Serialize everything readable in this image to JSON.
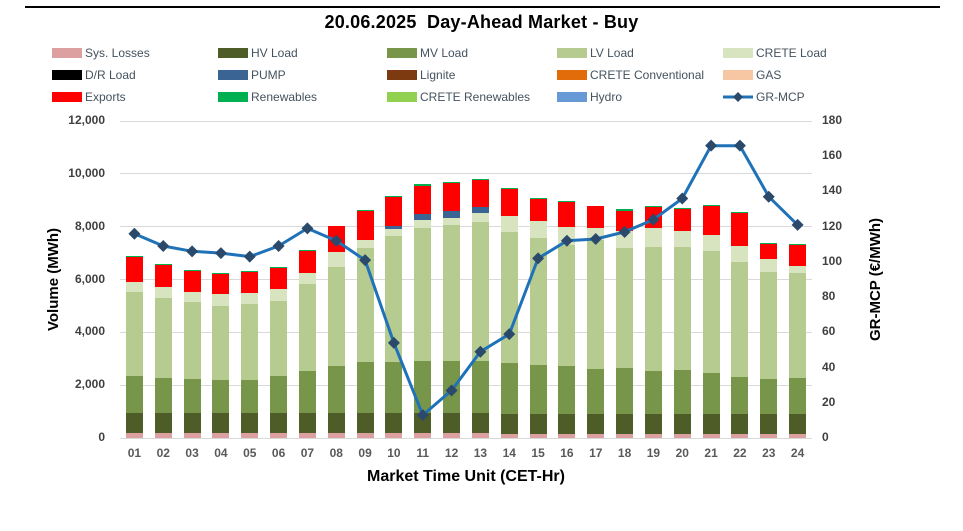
{
  "title": "20.06.2025  Day-Ahead Market - Buy",
  "legend": {
    "items": [
      {
        "label": "Sys. Losses",
        "color": "#dca0a0",
        "marker": "swatch"
      },
      {
        "label": "HV Load",
        "color": "#4e5d27",
        "marker": "swatch"
      },
      {
        "label": "MV Load",
        "color": "#78964a",
        "marker": "swatch"
      },
      {
        "label": "LV Load",
        "color": "#b5cb90",
        "marker": "swatch"
      },
      {
        "label": "CRETE Load",
        "color": "#d8e4c0",
        "marker": "swatch"
      },
      {
        "label": "D/R Load",
        "color": "#000000",
        "marker": "swatch"
      },
      {
        "label": "PUMP",
        "color": "#3a6493",
        "marker": "swatch"
      },
      {
        "label": "Lignite",
        "color": "#7d3a10",
        "marker": "swatch"
      },
      {
        "label": "CRETE Conventional",
        "color": "#e36c0a",
        "marker": "swatch"
      },
      {
        "label": "GAS",
        "color": "#f6c7a2",
        "marker": "swatch"
      },
      {
        "label": "Exports",
        "color": "#fe0000",
        "marker": "swatch"
      },
      {
        "label": "Renewables",
        "color": "#00b050",
        "marker": "swatch"
      },
      {
        "label": "CRETE Renewables",
        "color": "#92d050",
        "marker": "swatch"
      },
      {
        "label": "Hydro",
        "color": "#6699d6",
        "marker": "swatch"
      },
      {
        "label": "GR-MCP",
        "color": "#1f72b8",
        "marker": "line-diamond"
      }
    ]
  },
  "chart_data": {
    "type": "combo-stacked-bar-line",
    "categories": [
      "01",
      "02",
      "03",
      "04",
      "05",
      "06",
      "07",
      "08",
      "09",
      "10",
      "11",
      "12",
      "13",
      "14",
      "15",
      "16",
      "17",
      "18",
      "19",
      "20",
      "21",
      "22",
      "23",
      "24"
    ],
    "series": [
      {
        "name": "Sys. Losses",
        "color": "#dca0a0",
        "values": [
          180,
          180,
          180,
          180,
          180,
          180,
          180,
          180,
          180,
          180,
          180,
          180,
          180,
          150,
          150,
          150,
          150,
          150,
          150,
          150,
          150,
          150,
          150,
          150
        ]
      },
      {
        "name": "HV Load",
        "color": "#4e5d27",
        "values": [
          760,
          760,
          760,
          760,
          760,
          760,
          760,
          760,
          760,
          760,
          760,
          760,
          760,
          760,
          760,
          760,
          760,
          760,
          760,
          760,
          760,
          760,
          760,
          760
        ]
      },
      {
        "name": "MV Load",
        "color": "#78964a",
        "values": [
          1420,
          1340,
          1280,
          1260,
          1260,
          1420,
          1610,
          1790,
          1950,
          1950,
          1960,
          1960,
          1960,
          1920,
          1840,
          1820,
          1690,
          1730,
          1640,
          1660,
          1540,
          1390,
          1310,
          1350
        ]
      },
      {
        "name": "LV Load",
        "color": "#b5cb90",
        "values": [
          3180,
          3010,
          2940,
          2800,
          2870,
          2840,
          3280,
          3760,
          4320,
          4770,
          5040,
          5160,
          5290,
          4980,
          4830,
          4580,
          4900,
          4570,
          4690,
          4660,
          4630,
          4380,
          4050,
          3990
        ]
      },
      {
        "name": "CRETE Load",
        "color": "#d8e4c0",
        "values": [
          380,
          410,
          380,
          440,
          430,
          430,
          400,
          540,
          290,
          250,
          320,
          280,
          320,
          590,
          630,
          690,
          440,
          640,
          720,
          620,
          600,
          590,
          500,
          250
        ]
      },
      {
        "name": "D/R Load",
        "color": "#000000",
        "values": [
          0,
          0,
          0,
          0,
          0,
          0,
          0,
          0,
          0,
          0,
          0,
          0,
          0,
          0,
          0,
          0,
          0,
          0,
          0,
          0,
          0,
          0,
          0,
          0
        ]
      },
      {
        "name": "PUMP",
        "color": "#3a6493",
        "values": [
          0,
          0,
          0,
          0,
          0,
          0,
          0,
          0,
          0,
          130,
          210,
          250,
          250,
          0,
          0,
          0,
          0,
          0,
          0,
          0,
          0,
          0,
          0,
          0
        ]
      },
      {
        "name": "Lignite",
        "color": "#7d3a10",
        "values": [
          0,
          0,
          0,
          0,
          0,
          0,
          0,
          0,
          0,
          0,
          0,
          0,
          0,
          0,
          0,
          0,
          0,
          0,
          0,
          0,
          0,
          0,
          0,
          0
        ]
      },
      {
        "name": "CRETE Conventional",
        "color": "#e36c0a",
        "values": [
          0,
          0,
          0,
          0,
          0,
          0,
          0,
          0,
          0,
          0,
          0,
          0,
          0,
          0,
          0,
          0,
          0,
          0,
          0,
          0,
          0,
          0,
          0,
          0
        ]
      },
      {
        "name": "GAS",
        "color": "#f6c7a2",
        "values": [
          0,
          0,
          0,
          0,
          0,
          0,
          0,
          0,
          0,
          0,
          0,
          0,
          0,
          0,
          0,
          0,
          0,
          0,
          0,
          0,
          0,
          0,
          0,
          0
        ]
      },
      {
        "name": "Hydro",
        "color": "#6699d6",
        "values": [
          0,
          0,
          0,
          0,
          0,
          0,
          0,
          0,
          0,
          0,
          0,
          0,
          0,
          0,
          0,
          0,
          0,
          0,
          0,
          0,
          0,
          0,
          0,
          0
        ]
      },
      {
        "name": "Exports",
        "color": "#fe0000",
        "values": [
          940,
          860,
          790,
          780,
          790,
          800,
          840,
          1010,
          1100,
          1070,
          1080,
          1060,
          1010,
          1020,
          830,
          920,
          850,
          760,
          790,
          830,
          1090,
          1250,
          580,
          790
        ]
      },
      {
        "name": "Renewables",
        "color": "#00b050",
        "values": [
          40,
          40,
          40,
          40,
          40,
          40,
          40,
          0,
          50,
          30,
          50,
          50,
          30,
          30,
          10,
          30,
          0,
          60,
          30,
          40,
          30,
          30,
          20,
          20
        ]
      },
      {
        "name": "CRETE Renewables",
        "color": "#92d050",
        "values": [
          0,
          0,
          0,
          0,
          0,
          0,
          0,
          0,
          0,
          0,
          0,
          0,
          0,
          0,
          0,
          0,
          0,
          0,
          0,
          0,
          0,
          0,
          0,
          0
        ]
      }
    ],
    "line_series": {
      "name": "GR-MCP",
      "axis": "right",
      "line_color": "#1f72b8",
      "marker_color": "#2b4a6b",
      "values": [
        116,
        109,
        106,
        105,
        103,
        109,
        119,
        112,
        101,
        54,
        13,
        27,
        49,
        59,
        102,
        112,
        113,
        117,
        124,
        136,
        166,
        166,
        137,
        121
      ]
    },
    "left_axis": {
      "label": "Volume (MWh)",
      "min": 0,
      "max": 12000,
      "step": 2000,
      "tick_labels": [
        "0",
        "2,000",
        "4,000",
        "6,000",
        "8,000",
        "10,000",
        "12,000"
      ]
    },
    "right_axis": {
      "label": "GR-MCP (€/MWh)",
      "min": 0,
      "max": 180,
      "step": 20,
      "tick_labels": [
        "0",
        "20",
        "40",
        "60",
        "80",
        "100",
        "120",
        "140",
        "160",
        "180"
      ]
    },
    "xlabel": "Market Time Unit (CET-Hr)",
    "grid": "horizontal",
    "legend_position": "top"
  }
}
